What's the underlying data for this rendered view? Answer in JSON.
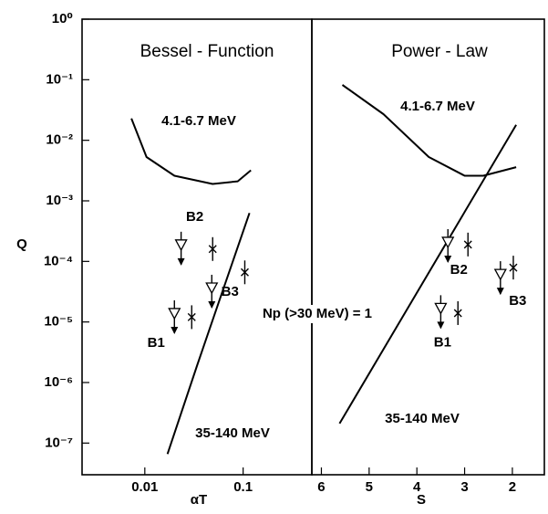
{
  "chart_data": [
    {
      "type": "line",
      "title": "Bessel - Function",
      "xlabel": "αT",
      "ylabel": "Q",
      "xscale": "log",
      "yscale": "log",
      "xlim": [
        0.0023,
        0.5
      ],
      "xticks": [
        0.01,
        0.1
      ],
      "ylim": [
        3e-08,
        1
      ],
      "yticks": [
        {
          "value": 1,
          "label": "10⁰"
        },
        {
          "value": 0.1,
          "label": "10⁻¹"
        },
        {
          "value": 0.01,
          "label": "10⁻²"
        },
        {
          "value": 0.001,
          "label": "10⁻³"
        },
        {
          "value": 0.0001,
          "label": "10⁻⁴"
        },
        {
          "value": 1e-05,
          "label": "10⁻⁵"
        },
        {
          "value": 1e-06,
          "label": "10⁻⁶"
        },
        {
          "value": 1e-07,
          "label": "10⁻⁷"
        }
      ],
      "color": "#000000",
      "series": [
        {
          "name": "4.1-6.7 MeV",
          "x": [
            0.0073,
            0.0104,
            0.02,
            0.049,
            0.088,
            0.12
          ],
          "y": [
            0.023,
            0.0053,
            0.0026,
            0.0019,
            0.0021,
            0.0032
          ]
        },
        {
          "name": "35-140 MeV",
          "x": [
            0.017,
            0.034,
            0.057,
            0.116
          ],
          "y": [
            6.6e-08,
            1.9e-06,
            2.2e-05,
            0.00063
          ]
        },
        {
          "marker": "triangle",
          "x": [
            0.0234,
            0.048,
            0.02
          ],
          "y": [
            0.00019,
            3.7e-05,
            1.4e-05
          ]
        },
        {
          "marker": "cross",
          "x": [
            0.049,
            0.104,
            0.03
          ],
          "y": [
            0.00016,
            6.6e-05,
            1.2e-05
          ]
        }
      ],
      "point_labels": [
        "B2",
        "B3",
        "B1"
      ]
    },
    {
      "type": "line",
      "title": "Power - Law",
      "xlabel": "S",
      "xscale": "linear",
      "yscale": "log",
      "xlim": [
        6.2,
        1.33
      ],
      "xticks": [
        6,
        5,
        4,
        3,
        2
      ],
      "ylim": [
        3e-08,
        1
      ],
      "color": "#000000",
      "series": [
        {
          "name": "4.1-6.7 MeV",
          "x": [
            5.56,
            4.7,
            3.75,
            3.0,
            2.61,
            1.92
          ],
          "y": [
            0.082,
            0.027,
            0.0053,
            0.0026,
            0.0026,
            0.0036
          ]
        },
        {
          "name": "35-140 MeV",
          "x": [
            5.62,
            1.92
          ],
          "y": [
            2.1e-07,
            0.018
          ]
        },
        {
          "marker": "triangle",
          "x": [
            3.35,
            2.25,
            3.5
          ],
          "y": [
            0.00021,
            6.2e-05,
            1.7e-05
          ]
        },
        {
          "marker": "cross",
          "x": [
            2.93,
            1.98,
            3.14
          ],
          "y": [
            0.00019,
            7.9e-05,
            1.4e-05
          ]
        }
      ],
      "point_labels": [
        "B2",
        "B3",
        "B1"
      ]
    }
  ],
  "annotation": "Np (>30 MeV) = 1"
}
